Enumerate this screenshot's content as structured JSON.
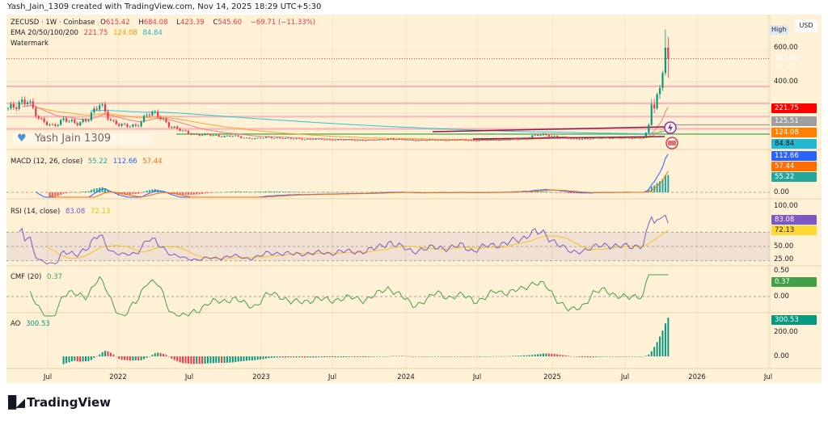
{
  "credit": "Yash_Jain_1309 created with TradingView.com, Nov 14, 2025 18:29 UTC+5:30",
  "legend": {
    "symbol": "ZECUSD · 1W · Coinbase",
    "o_label": "O",
    "o": "615.42",
    "h_label": "H",
    "h": "684.08",
    "l_label": "L",
    "l": "423.39",
    "c_label": "C",
    "c": "545.60",
    "change": "−69.71 (−11.33%)",
    "ema_label": "EMA 20/50/100/200",
    "ema_values": [
      "221.75",
      "124.08",
      "84.84"
    ],
    "watermark_label": "Watermark"
  },
  "watermark": "Yash  Jain  1309",
  "indicators": {
    "macd": {
      "label": "MACD (12, 26, close)",
      "values": [
        "55.22",
        "112.66",
        "57.44"
      ]
    },
    "rsi": {
      "label": "RSI (14, close)",
      "values": [
        "83.08",
        "72.13"
      ]
    },
    "cmf": {
      "label": "CMF (20)",
      "value": "0.37"
    },
    "ao": {
      "label": "AO",
      "value": "300.53"
    }
  },
  "axis": {
    "currency": "USD",
    "high_button": "High",
    "price_ticks": [
      "600.00",
      "400.00"
    ],
    "macd_ticks": [
      "0.00"
    ],
    "rsi_ticks": [
      "100.00",
      "50.00",
      "25.00"
    ],
    "cmf_ticks": [
      "0.50",
      "0.00"
    ],
    "ao_ticks": [
      "200.00",
      "0.00"
    ],
    "time_ticks": [
      "Jul",
      "2022",
      "Jul",
      "2023",
      "Jul",
      "2024",
      "Jul",
      "2025",
      "Jul",
      "2026",
      "Jul"
    ]
  },
  "badges": {
    "price": {
      "value": "545.60",
      "countdown": "2d 12h",
      "color": "#f23645"
    },
    "ema20": {
      "value": "221.75",
      "color": "#ff0000"
    },
    "level": {
      "value": "125.51",
      "color": "#9e9e9e"
    },
    "ema50": {
      "value": "124.08",
      "color": "#ff8000"
    },
    "ema200": {
      "value": "84.84",
      "color": "#22b8d0"
    },
    "macd_signal": {
      "value": "112.66",
      "color": "#2962ff"
    },
    "macd_hist2": {
      "value": "57.44",
      "color": "#ff6d00"
    },
    "macd_hist": {
      "value": "55.22",
      "color": "#26a69a"
    },
    "rsi": {
      "value": "83.08",
      "color": "#7e57c2"
    },
    "rsi_ma": {
      "value": "72.13",
      "color": "#fdd835"
    },
    "cmf": {
      "value": "0.37",
      "color": "#43a047"
    },
    "ao": {
      "value": "300.53",
      "color": "#089981"
    }
  },
  "footer": {
    "brand": "TradingView"
  },
  "chart_data": {
    "type": "candlestick",
    "symbol": "ZECUSD",
    "interval": "1W",
    "y_scale": "linear",
    "ylim_main": [
      0,
      700
    ],
    "colors": {
      "up": "#089981",
      "down": "#f23645",
      "ema20": "#f77c80",
      "ema50": "#ffa726",
      "ema200": "#26c6da"
    },
    "approx_monthly_close": {
      "months": [
        "2021-04",
        "2021-05",
        "2021-06",
        "2021-07",
        "2021-08",
        "2021-09",
        "2021-10",
        "2021-11",
        "2021-12",
        "2022-01",
        "2022-02",
        "2022-03",
        "2022-04",
        "2022-05",
        "2022-06",
        "2022-07",
        "2022-08",
        "2022-09",
        "2022-10",
        "2022-11",
        "2022-12",
        "2023-01",
        "2023-02",
        "2023-03",
        "2023-04",
        "2023-05",
        "2023-06",
        "2023-07",
        "2023-08",
        "2023-09",
        "2023-10",
        "2023-11",
        "2023-12",
        "2024-01",
        "2024-02",
        "2024-03",
        "2024-04",
        "2024-05",
        "2024-06",
        "2024-07",
        "2024-08",
        "2024-09",
        "2024-10",
        "2024-11",
        "2024-12",
        "2025-01",
        "2025-02",
        "2025-03",
        "2025-04",
        "2025-05",
        "2025-06",
        "2025-07",
        "2025-08",
        "2025-09"
      ],
      "close": [
        230,
        300,
        150,
        120,
        160,
        130,
        170,
        250,
        150,
        115,
        120,
        200,
        175,
        110,
        80,
        65,
        60,
        55,
        55,
        42,
        40,
        45,
        42,
        36,
        35,
        33,
        30,
        31,
        28,
        28,
        30,
        38,
        32,
        27,
        28,
        30,
        28,
        31,
        25,
        29,
        31,
        34,
        40,
        58,
        60,
        52,
        35,
        36,
        40,
        45,
        42,
        42,
        45,
        55
      ]
    },
    "recent_weekly": [
      {
        "o": 55,
        "h": 80,
        "l": 53,
        "c": 75
      },
      {
        "o": 75,
        "h": 135,
        "l": 72,
        "c": 125
      },
      {
        "o": 125,
        "h": 290,
        "l": 120,
        "c": 255
      },
      {
        "o": 255,
        "h": 290,
        "l": 200,
        "c": 230
      },
      {
        "o": 230,
        "h": 330,
        "l": 220,
        "c": 320
      },
      {
        "o": 320,
        "h": 380,
        "l": 290,
        "c": 360
      },
      {
        "o": 360,
        "h": 470,
        "l": 340,
        "c": 455
      },
      {
        "o": 455,
        "h": 730,
        "l": 440,
        "c": 615.42
      },
      {
        "o": 615.42,
        "h": 684.08,
        "l": 423.39,
        "c": 545.6
      }
    ],
    "horizontal_levels": [
      370,
      262,
      178,
      100
    ],
    "support_level": 67,
    "gray_level": 125.51,
    "trendlines": [
      {
        "from": [
          "2024-03",
          82
        ],
        "to": [
          "2025-10",
          115
        ]
      },
      {
        "from": [
          "2024-06",
          35
        ],
        "to": [
          "2025-10",
          50
        ]
      }
    ]
  }
}
